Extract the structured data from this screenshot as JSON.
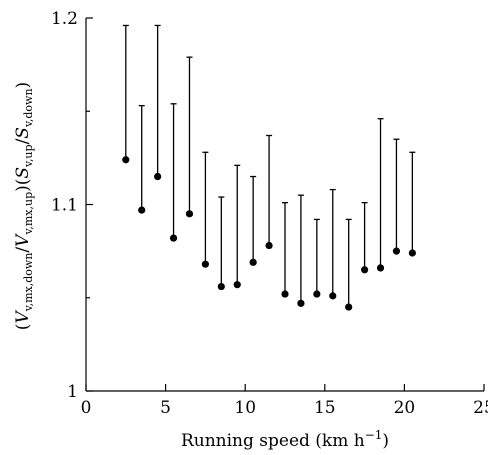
{
  "chart_data": {
    "type": "scatter",
    "title": "",
    "xlabel": "Running speed (km h",
    "xlabel_sup": "−1",
    "xlabel_suffix": ")",
    "ylabel_parts": [
      {
        "t": "(",
        "s": null
      },
      {
        "t": "V",
        "s": "v,mx,down",
        "i": true
      },
      {
        "t": "/",
        "s": null
      },
      {
        "t": "V",
        "s": "v,mx,up",
        "i": true
      },
      {
        "t": ")(",
        "s": null
      },
      {
        "t": "S",
        "s": "v,up",
        "i": true
      },
      {
        "t": "/",
        "s": null
      },
      {
        "t": "S",
        "s": "v,down",
        "i": true
      },
      {
        "t": ")",
        "s": null
      }
    ],
    "xlim": [
      0,
      25
    ],
    "ylim": [
      1.0,
      1.2
    ],
    "xticks": [
      0,
      5,
      10,
      15,
      20,
      25
    ],
    "xtick_labels": [
      "0",
      "5",
      "10",
      "15",
      "20",
      "25"
    ],
    "yticks": [
      1.0,
      1.1,
      1.2
    ],
    "ytick_labels": [
      "1",
      "1.1",
      "1.2"
    ],
    "y_minor_ticks": [
      1.05,
      1.15
    ],
    "grid": false,
    "legend": "none",
    "error_bars": "upper only",
    "series": [
      {
        "x": [
          2.5,
          3.5,
          4.5,
          5.5,
          6.5,
          7.5,
          8.5,
          9.5,
          10.5,
          11.5,
          12.5,
          13.5,
          14.5,
          15.5,
          16.5,
          17.5,
          18.5,
          19.5,
          20.5
        ],
        "y": [
          1.124,
          1.097,
          1.115,
          1.082,
          1.095,
          1.068,
          1.056,
          1.057,
          1.069,
          1.078,
          1.052,
          1.047,
          1.052,
          1.051,
          1.045,
          1.065,
          1.066,
          1.075,
          1.074
        ],
        "y_upper": [
          1.196,
          1.153,
          1.196,
          1.154,
          1.179,
          1.128,
          1.104,
          1.121,
          1.115,
          1.137,
          1.101,
          1.105,
          1.092,
          1.108,
          1.092,
          1.101,
          1.146,
          1.135,
          1.128
        ]
      }
    ]
  }
}
